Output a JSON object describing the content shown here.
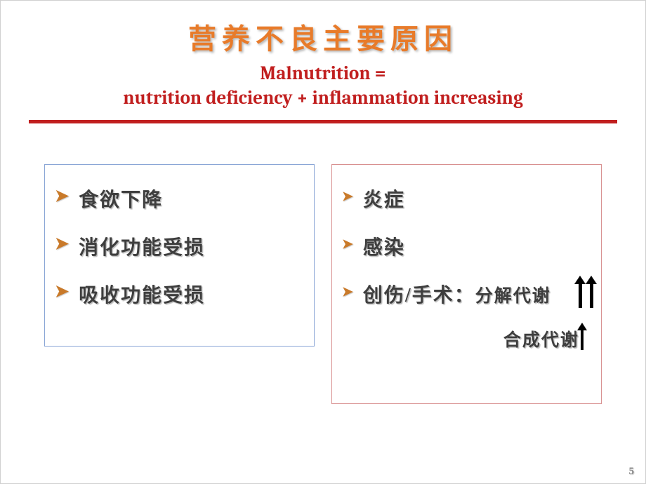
{
  "title_cn": "营养不良主要原因",
  "subtitle_en_line1": "Malnutrition =",
  "subtitle_en_line2": "nutrition deficiency + inflammation increasing",
  "colors": {
    "title_cn": "#e87b2a",
    "subtitle_en": "#c11f1f",
    "hr": "#c11f1f",
    "bullet": "#c97a2a",
    "left_border": "#8aa6d6",
    "right_border": "#d89090",
    "body_text": "#3e3e3e",
    "arrow": "#000000",
    "page_num": "#888888",
    "background": "#ffffff"
  },
  "typography": {
    "title_cn_fontsize": 40,
    "subtitle_en_fontsize": 27,
    "item_fontsize": 28,
    "sub_fontsize": 25,
    "page_num_fontsize": 15
  },
  "left_box": {
    "items": [
      "食欲下降",
      "消化功能受损",
      "吸收功能受损"
    ]
  },
  "right_box": {
    "items": [
      "炎症",
      "感染"
    ],
    "item3_main": "创伤/手术：",
    "item3_sub1": "分解代谢",
    "item3_sub2": "合成代谢"
  },
  "arrows": {
    "double_up_count": 2,
    "single_up_count": 1
  },
  "page_number": "5"
}
